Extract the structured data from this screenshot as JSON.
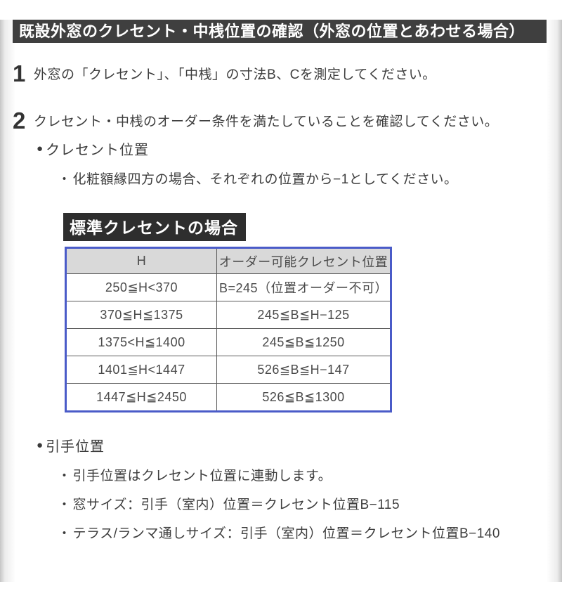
{
  "page": {
    "title": "既設外窓のクレセント・中桟位置の確認（外窓の位置とあわせる場合）"
  },
  "icons": {
    "bullet": "●",
    "dot": "・"
  },
  "colors": {
    "title_bar_bg": "#3f3f3f",
    "label_bg": "#2e2e2e",
    "table_border_blue": "#4a5bc8",
    "table_header_bg": "#d9d9d9",
    "text": "#3d3d3d"
  },
  "steps": [
    {
      "number": "1",
      "text": "外窓の「クレセント」、「中桟」の寸法B、Cを測定してください。"
    },
    {
      "number": "2",
      "text": "クレセント・中桟のオーダー条件を満たしていることを確認してください。"
    }
  ],
  "crescent_section": {
    "heading": "クレセント位置",
    "note": "化粧額縁四方の場合、それぞれの位置から−1としてください。",
    "table_label": "標準クレセントの場合",
    "table": {
      "columns": [
        "H",
        "オーダー可能クレセント位置"
      ],
      "rows": [
        [
          "250≦H<370",
          "B=245（位置オーダー不可）"
        ],
        [
          "370≦H≦1375",
          "245≦B≦H−125"
        ],
        [
          "1375<H≦1400",
          "245≦B≦1250"
        ],
        [
          "1401≦H<1447",
          "526≦B≦H−147"
        ],
        [
          "1447≦H≦2450",
          "526≦B≦1300"
        ]
      ]
    }
  },
  "handle_section": {
    "heading": "引手位置",
    "notes": [
      "引手位置はクレセント位置に連動します。",
      "窓サイズ：引手（室内）位置＝クレセント位置B−115",
      "テラス/ランマ通しサイズ：引手（室内）位置＝クレセント位置B−140"
    ]
  }
}
